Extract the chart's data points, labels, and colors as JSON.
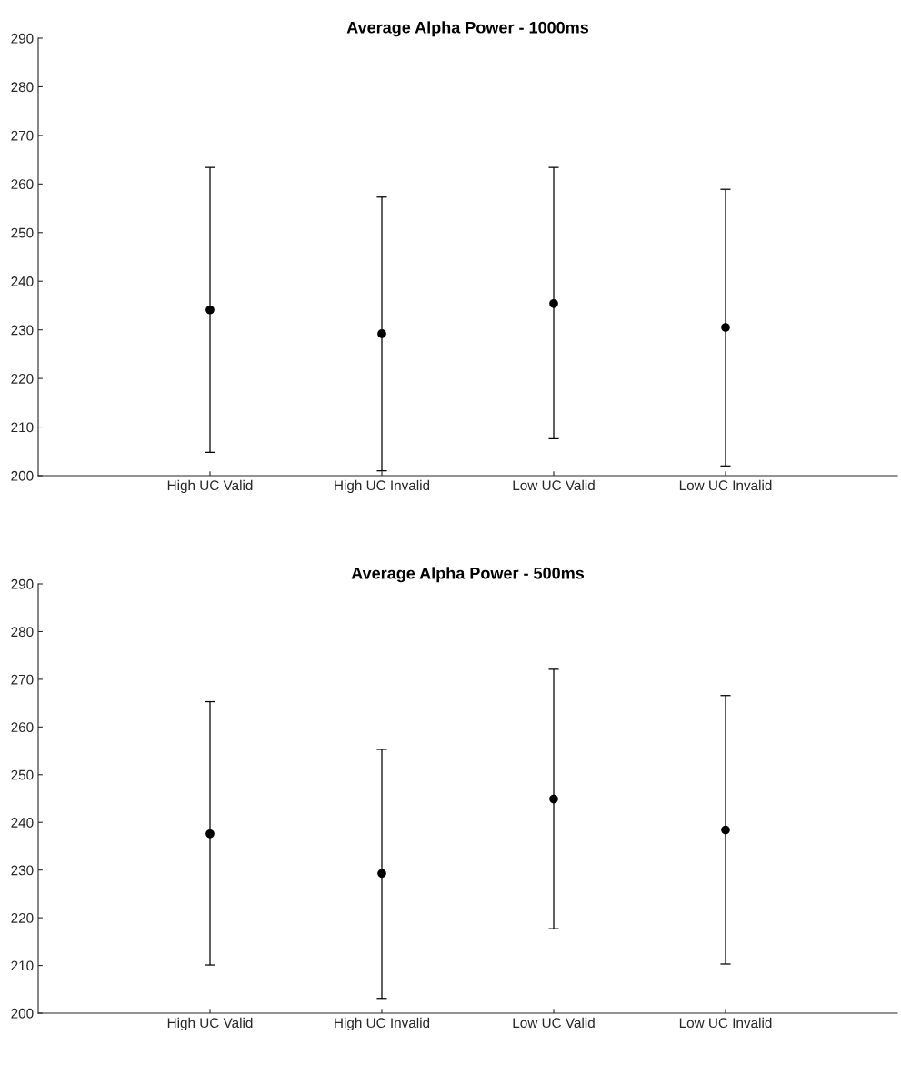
{
  "chart_data": [
    {
      "type": "scatter",
      "title": "Average Alpha Power - 1000ms",
      "categories": [
        "High UC Valid",
        "High UC Invalid",
        "Low UC Valid",
        "Low UC Invalid"
      ],
      "series": [
        {
          "color": "#000000",
          "values": [
            234.1,
            229.2,
            235.4,
            230.5
          ],
          "errors": [
            [
              204.8,
              263.4
            ],
            [
              201.0,
              257.3
            ],
            [
              207.6,
              263.4
            ],
            [
              202.0,
              258.9
            ]
          ]
        }
      ],
      "ylim": [
        200,
        290
      ],
      "yticks": [
        200,
        210,
        220,
        230,
        240,
        250,
        260,
        270,
        280,
        290
      ],
      "marker": "circle",
      "grid": false
    },
    {
      "type": "scatter",
      "title": "Average Alpha Power - 500ms",
      "categories": [
        "High UC Valid",
        "High UC Invalid",
        "Low UC Valid",
        "Low UC Invalid"
      ],
      "series": [
        {
          "color": "#000000",
          "values": [
            237.6,
            229.3,
            244.9,
            238.4
          ],
          "errors": [
            [
              210.1,
              265.3
            ],
            [
              203.1,
              255.3
            ],
            [
              217.7,
              272.1
            ],
            [
              210.3,
              266.6
            ]
          ]
        }
      ],
      "ylim": [
        200,
        290
      ],
      "yticks": [
        200,
        210,
        220,
        230,
        240,
        250,
        260,
        270,
        280,
        290
      ],
      "marker": "circle",
      "grid": false
    }
  ]
}
